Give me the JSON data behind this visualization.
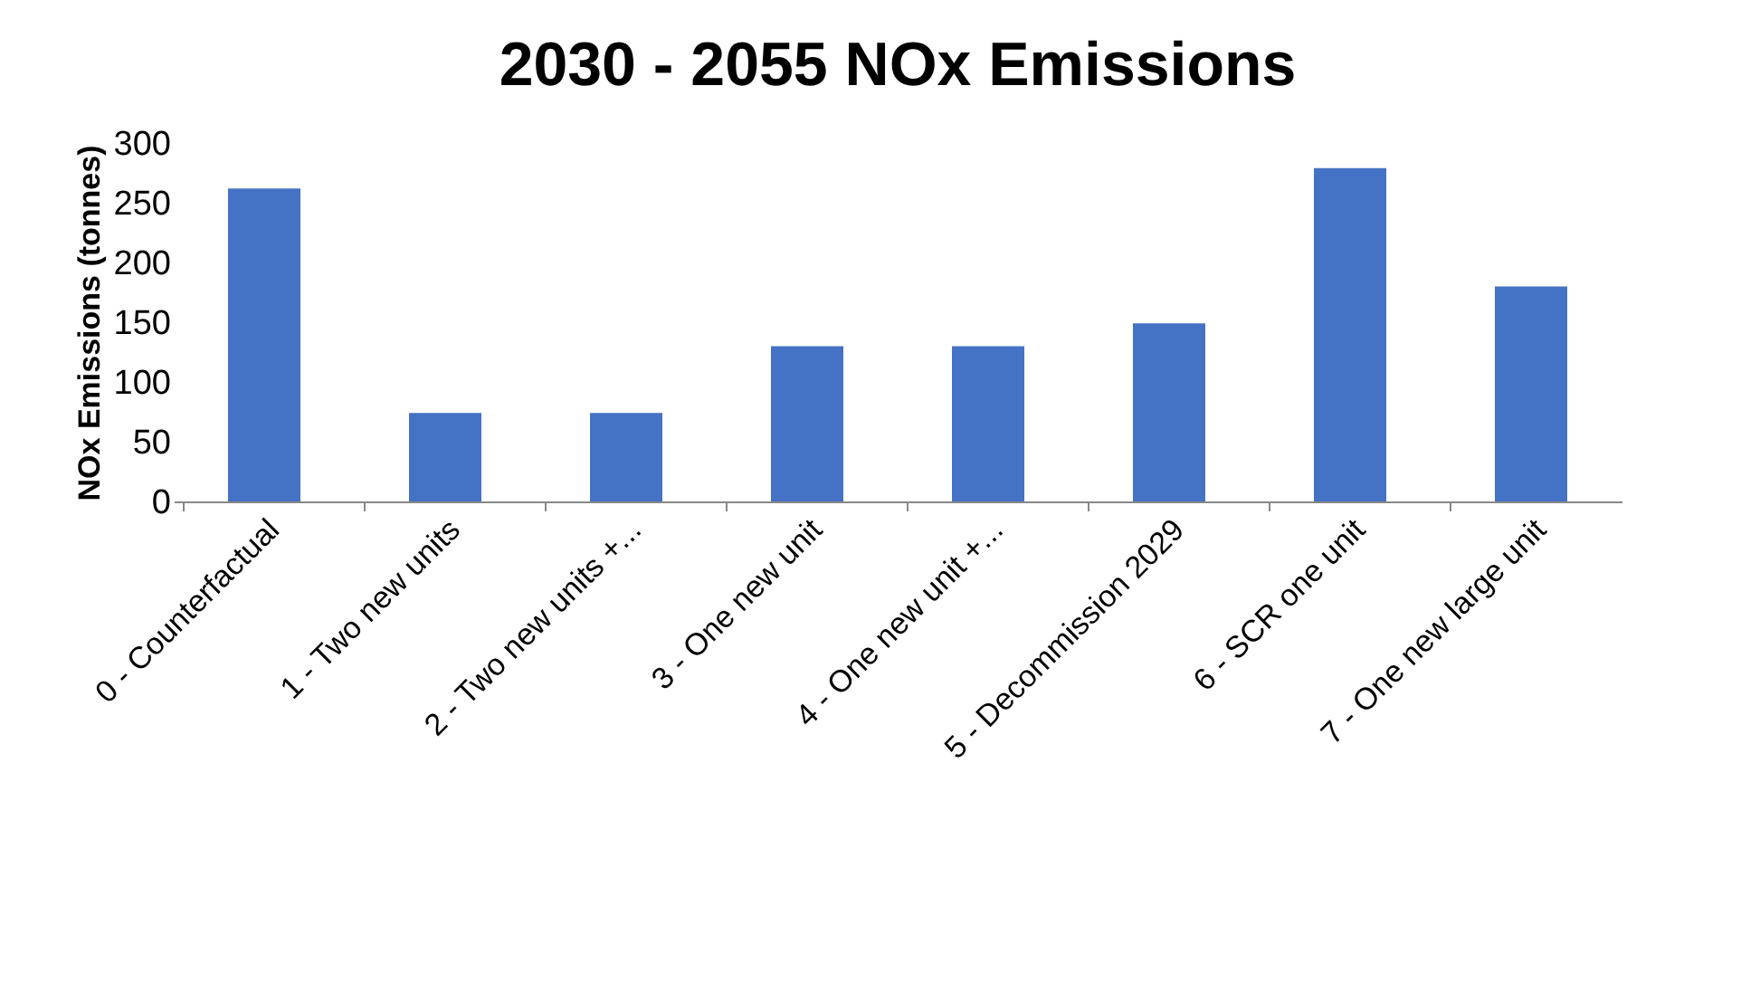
{
  "chart_data": {
    "type": "bar",
    "title": "2030 - 2055 NOx Emissions",
    "ylabel": "NOx Emissions (tonnes)",
    "categories": [
      "0 - Counterfactual",
      "1 - Two new units",
      "2 - Two new units +...",
      "3 - One new unit",
      "4 - One new unit +...",
      "5 - Decommission 2029",
      "6 - SCR one unit",
      "7 - One new large unit"
    ],
    "values": [
      262,
      74,
      74,
      130,
      130,
      149,
      279,
      180
    ],
    "color": "#4472c4",
    "ylim": [
      0,
      300
    ],
    "yticks": [
      0,
      50,
      100,
      150,
      200,
      250,
      300
    ],
    "grid": false
  }
}
